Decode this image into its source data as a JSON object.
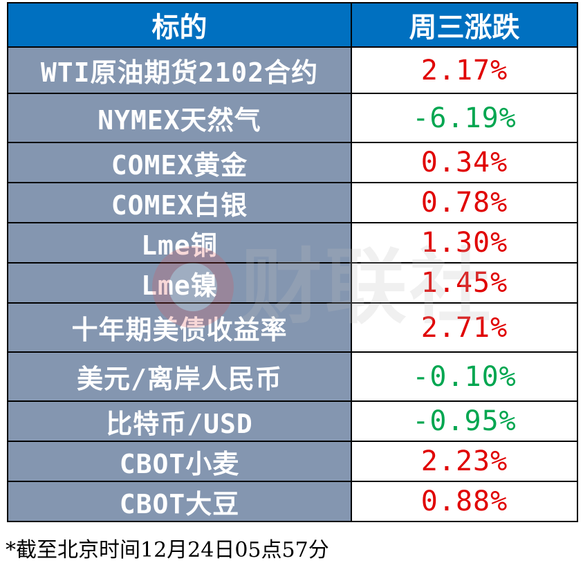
{
  "header": {
    "col_name": "标的",
    "col_change": "周三涨跌"
  },
  "rows": [
    {
      "name": "WTI原油期货2102合约",
      "change": "2.17%",
      "direction": "up"
    },
    {
      "name": "NYMEX天然气",
      "change": "-6.19%",
      "direction": "down"
    },
    {
      "name": "COMEX黄金",
      "change": "0.34%",
      "direction": "up"
    },
    {
      "name": "COMEX白银",
      "change": "0.78%",
      "direction": "up"
    },
    {
      "name": "Lme铜",
      "change": "1.30%",
      "direction": "up"
    },
    {
      "name": "Lme镍",
      "change": "1.45%",
      "direction": "up"
    },
    {
      "name": "十年期美债收益率",
      "change": "2.71%",
      "direction": "up"
    },
    {
      "name": "美元/离岸人民币",
      "change": "-0.10%",
      "direction": "down"
    },
    {
      "name": "比特币/USD",
      "change": "-0.95%",
      "direction": "down"
    },
    {
      "name": "CBOT小麦",
      "change": "2.23%",
      "direction": "up"
    },
    {
      "name": "CBOT大豆",
      "change": "0.88%",
      "direction": "up"
    }
  ],
  "footnote": "*截至北京时间12月24日05点57分",
  "watermark": {
    "text": "财联社",
    "logo_icon": "cls-logo-icon"
  },
  "colors": {
    "header_bg": "#0070c0",
    "name_bg": "#8496b0",
    "up": "#e00000",
    "down": "#00a650"
  }
}
